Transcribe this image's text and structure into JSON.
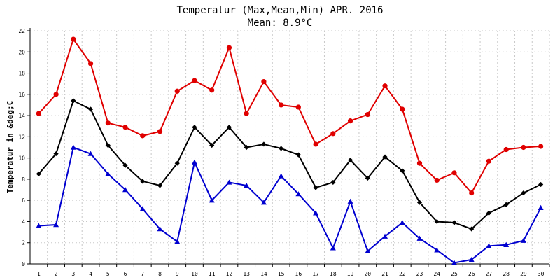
{
  "chart_data": {
    "type": "line",
    "title": "Temperatur (Max,Mean,Min) APR. 2016",
    "subtitle": "Mean: 8.9°C",
    "ylabel": "Temperatur in &deg;C",
    "xlabel": "",
    "ylim": [
      0,
      22
    ],
    "yticks": [
      0,
      2,
      4,
      6,
      8,
      10,
      12,
      14,
      16,
      18,
      20,
      22
    ],
    "categories": [
      "1",
      "2",
      "3",
      "4",
      "5",
      "6",
      "7",
      "8",
      "9",
      "10",
      "11",
      "12",
      "13",
      "14",
      "15",
      "16",
      "17",
      "18",
      "19",
      "20",
      "21",
      "22",
      "23",
      "24",
      "25",
      "26",
      "27",
      "28",
      "29",
      "30"
    ],
    "grid": true,
    "legend": "none",
    "series": [
      {
        "color": "#e00000",
        "marker": "circle",
        "values": [
          14.2,
          16.0,
          21.2,
          18.9,
          13.3,
          12.9,
          12.1,
          12.5,
          16.3,
          17.3,
          16.4,
          20.4,
          14.2,
          17.2,
          15.0,
          14.8,
          11.3,
          12.3,
          13.5,
          14.1,
          16.8,
          14.6,
          9.5,
          7.9,
          8.6,
          6.7,
          9.7,
          10.8,
          11.0,
          11.1
        ]
      },
      {
        "color": "#000000",
        "marker": "diamond",
        "values": [
          8.5,
          10.4,
          15.4,
          14.6,
          11.2,
          9.3,
          7.8,
          7.4,
          9.5,
          12.9,
          11.2,
          12.9,
          11.0,
          11.3,
          10.9,
          10.3,
          7.2,
          7.7,
          9.8,
          8.1,
          10.1,
          8.8,
          5.8,
          4.0,
          3.9,
          3.3,
          4.8,
          5.6,
          6.7,
          7.5
        ]
      },
      {
        "color": "#0000d0",
        "marker": "triangle",
        "values": [
          3.6,
          3.7,
          11.0,
          10.4,
          8.5,
          7.0,
          5.2,
          3.3,
          2.1,
          9.6,
          6.0,
          7.7,
          7.4,
          5.8,
          8.3,
          6.6,
          4.8,
          1.5,
          5.9,
          1.2,
          2.6,
          3.9,
          2.4,
          1.3,
          0.1,
          0.4,
          1.7,
          1.8,
          2.2,
          5.3
        ]
      }
    ]
  }
}
